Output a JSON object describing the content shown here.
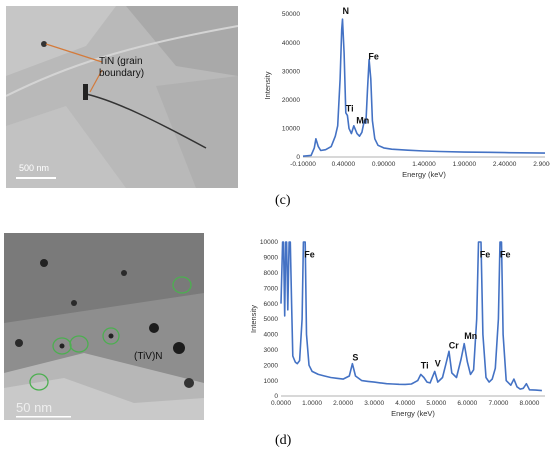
{
  "panel_c": {
    "label": "(c)",
    "image": {
      "annotation_line1": "TiN (grain",
      "annotation_line2": "boundary)",
      "scale_bar": "500 nm"
    }
  },
  "panel_d": {
    "label": "(d)",
    "image": {
      "annotation": "(TiV)N",
      "scale_bar": "50 nm"
    }
  },
  "chart_data": [
    {
      "type": "line",
      "title": "",
      "xlabel": "Energy (keV)",
      "ylabel": "Intensity",
      "xlim": [
        -0.1,
        2.9
      ],
      "ylim": [
        0,
        55000
      ],
      "xticks": [
        "-0.10000",
        "0.40000",
        "0.90000",
        "1.40000",
        "1.90000",
        "2.40000",
        "2.90000"
      ],
      "yticks": [
        "0",
        "10000",
        "20000",
        "30000",
        "40000",
        "50000"
      ],
      "grid": false,
      "annotations": [
        {
          "text": "N",
          "x": 0.39,
          "y": 55000
        },
        {
          "text": "Fe",
          "x": 0.71,
          "y": 37500
        },
        {
          "text": "Ti",
          "x": 0.43,
          "y": 17500
        },
        {
          "text": "Mn",
          "x": 0.56,
          "y": 12800
        }
      ],
      "series": [
        {
          "color": "#4472c4",
          "x": [
            -0.1,
            0.0,
            0.04,
            0.06,
            0.09,
            0.12,
            0.18,
            0.25,
            0.3,
            0.33,
            0.36,
            0.38,
            0.39,
            0.41,
            0.43,
            0.45,
            0.47,
            0.5,
            0.53,
            0.55,
            0.57,
            0.6,
            0.63,
            0.66,
            0.68,
            0.7,
            0.72,
            0.74,
            0.76,
            0.79,
            0.83,
            0.9,
            1.0,
            1.2,
            1.4,
            1.6,
            1.9,
            2.2,
            2.4,
            2.6,
            2.9
          ],
          "values": [
            300,
            600,
            3500,
            7000,
            4000,
            2500,
            2800,
            4000,
            8000,
            12000,
            30000,
            49000,
            53000,
            40000,
            17000,
            16000,
            11000,
            9000,
            12000,
            10500,
            9000,
            8000,
            9500,
            14000,
            13000,
            26000,
            37500,
            30000,
            14000,
            7000,
            4500,
            3500,
            3000,
            2600,
            2300,
            2100,
            1900,
            1800,
            1700,
            1600,
            1500
          ]
        }
      ]
    },
    {
      "type": "line",
      "title": "",
      "xlabel": "Energy (keV)",
      "ylabel": "Intensity",
      "xlim": [
        0,
        8.5
      ],
      "ylim": [
        0,
        10000
      ],
      "xticks": [
        "0.0000",
        "1.0000",
        "2.0000",
        "3.0000",
        "4.0000",
        "5.0000",
        "6.0000",
        "7.0000",
        "8.0000"
      ],
      "yticks": [
        "0",
        "1000",
        "2000",
        "3000",
        "4000",
        "5000",
        "6000",
        "7000",
        "8000",
        "9000",
        "10000"
      ],
      "grid": false,
      "annotations": [
        {
          "text": "Fe",
          "x": 0.75,
          "y": 9000
        },
        {
          "text": "S",
          "x": 2.3,
          "y": 2300
        },
        {
          "text": "Ti",
          "x": 4.5,
          "y": 1800
        },
        {
          "text": "V",
          "x": 4.95,
          "y": 1900
        },
        {
          "text": "Cr",
          "x": 5.4,
          "y": 3100
        },
        {
          "text": "Mn",
          "x": 5.9,
          "y": 3700
        },
        {
          "text": "Fe",
          "x": 6.4,
          "y": 9000
        },
        {
          "text": "Fe",
          "x": 7.05,
          "y": 9000
        }
      ],
      "series": [
        {
          "color": "#4472c4",
          "x": [
            0.0,
            0.05,
            0.08,
            0.12,
            0.15,
            0.18,
            0.22,
            0.26,
            0.3,
            0.34,
            0.38,
            0.42,
            0.46,
            0.52,
            0.6,
            0.68,
            0.72,
            0.75,
            0.78,
            0.82,
            0.9,
            1.0,
            1.2,
            1.4,
            1.6,
            1.8,
            2.0,
            2.2,
            2.3,
            2.4,
            2.6,
            2.8,
            3.0,
            3.2,
            3.4,
            3.6,
            3.8,
            4.0,
            4.2,
            4.4,
            4.5,
            4.6,
            4.7,
            4.8,
            4.95,
            5.05,
            5.2,
            5.3,
            5.41,
            5.5,
            5.65,
            5.8,
            5.9,
            6.0,
            6.1,
            6.2,
            6.3,
            6.36,
            6.4,
            6.44,
            6.5,
            6.6,
            6.7,
            6.8,
            6.9,
            7.0,
            7.05,
            7.1,
            7.15,
            7.25,
            7.4,
            7.5,
            7.6,
            7.7,
            7.8,
            7.9,
            8.0,
            8.2,
            8.4
          ],
          "values": [
            6000,
            10000,
            10000,
            5200,
            10000,
            10000,
            5600,
            10000,
            10000,
            6000,
            2600,
            2400,
            2200,
            2100,
            2300,
            5000,
            10000,
            10000,
            10000,
            4000,
            2000,
            1600,
            1400,
            1300,
            1200,
            1150,
            1100,
            1300,
            2100,
            1300,
            1000,
            950,
            900,
            850,
            800,
            780,
            760,
            750,
            780,
            1000,
            1400,
            1200,
            900,
            850,
            1600,
            900,
            1200,
            2000,
            2900,
            1500,
            1200,
            2400,
            3400,
            2200,
            1400,
            1700,
            5000,
            10000,
            10000,
            10000,
            4000,
            1200,
            900,
            1100,
            1800,
            5000,
            10000,
            10000,
            4000,
            1000,
            700,
            1100,
            600,
            450,
            500,
            800,
            400,
            380,
            350
          ]
        }
      ]
    }
  ]
}
